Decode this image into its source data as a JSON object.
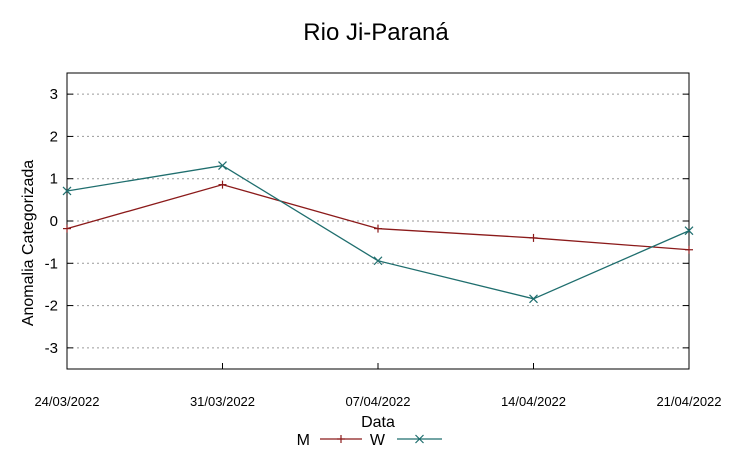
{
  "chart_data": {
    "type": "line",
    "title": "Rio Ji-Paraná",
    "xlabel": "Data",
    "ylabel": "Anomalia Categorizada",
    "categories": [
      "24/03/2022",
      "31/03/2022",
      "07/04/2022",
      "14/04/2022",
      "21/04/2022"
    ],
    "yticks": [
      "3",
      "2",
      "1",
      "0",
      "-1",
      "-2",
      "-3"
    ],
    "ylim": [
      -3.5,
      3.5
    ],
    "grid": "horizontal dotted",
    "legend": "bottom-center",
    "series": [
      {
        "name": "M",
        "color": "#8b1a1a",
        "marker": "plus",
        "values": [
          -0.18,
          0.86,
          -0.18,
          -0.4,
          -0.68
        ]
      },
      {
        "name": "W",
        "color": "#1f6e6e",
        "marker": "cross",
        "values": [
          0.71,
          1.31,
          -0.94,
          -1.84,
          -0.23
        ]
      }
    ]
  }
}
